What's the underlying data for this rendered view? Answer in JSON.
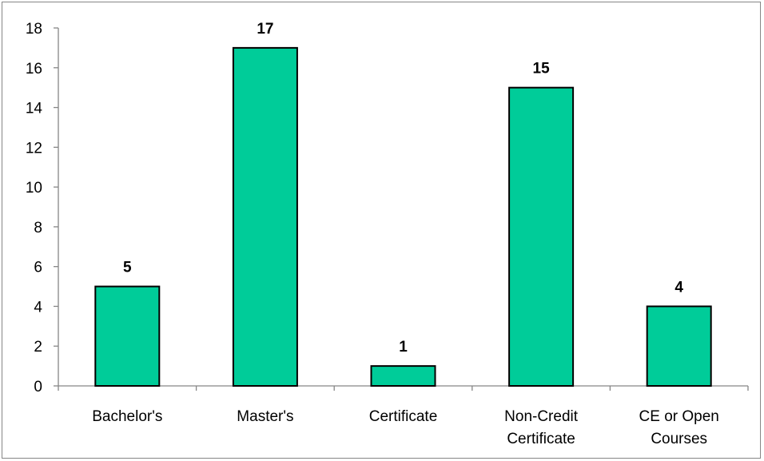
{
  "chart_data": {
    "type": "bar",
    "categories": [
      "Bachelor's",
      "Master's",
      "Certificate",
      "Non-Credit Certificate",
      "CE or Open Courses"
    ],
    "category_lines": [
      [
        "Bachelor's"
      ],
      [
        "Master's"
      ],
      [
        "Certificate"
      ],
      [
        "Non-Credit",
        "Certificate"
      ],
      [
        "CE or Open",
        "Courses"
      ]
    ],
    "values": [
      5,
      17,
      1,
      15,
      4
    ],
    "data_labels": [
      "5",
      "17",
      "1",
      "15",
      "4"
    ],
    "ylim": [
      0,
      18
    ],
    "yticks": [
      0,
      2,
      4,
      6,
      8,
      10,
      12,
      14,
      16,
      18
    ],
    "ytick_labels": [
      "0",
      "2",
      "4",
      "6",
      "8",
      "10",
      "12",
      "14",
      "16",
      "18"
    ],
    "grid": false,
    "legend": "none",
    "bar_color": "#00CC99",
    "bar_edge_color": "#000000",
    "axis_color": "#868686"
  }
}
